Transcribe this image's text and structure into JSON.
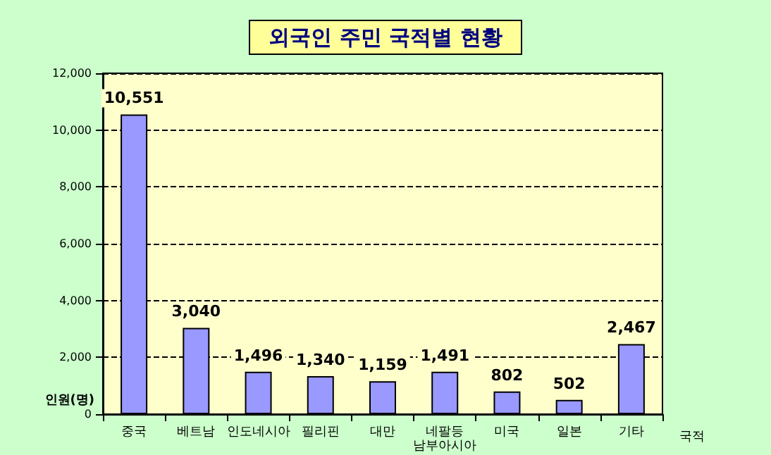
{
  "chart_data": {
    "type": "bar",
    "title": "외국인 주민 국적별 현황",
    "xlabel": "국적",
    "ylabel": "인원(명)",
    "categories": [
      "중국",
      "베트남",
      "인도네시아",
      "필리핀",
      "대만",
      "네팔등\n남부아시아",
      "미국",
      "일본",
      "기타"
    ],
    "values": [
      10551,
      3040,
      1496,
      1340,
      1159,
      1491,
      802,
      502,
      2467
    ],
    "value_labels": [
      "10,551",
      "3,040",
      "1,496",
      "1,340",
      "1,159",
      "1,491",
      "802",
      "502",
      "2,467"
    ],
    "color": "#9999ff",
    "ylim": [
      0,
      12000
    ],
    "yticks": [
      0,
      {
        "value": 2000,
        "label": "2,000"
      },
      {
        "value": 4000,
        "label": "4,000"
      },
      {
        "value": 6000,
        "label": "6,000"
      },
      {
        "value": 8000,
        "label": "8,000"
      },
      {
        "value": 10000,
        "label": "10,000"
      },
      {
        "value": 12000,
        "label": "12,000"
      }
    ],
    "grid": "y"
  }
}
